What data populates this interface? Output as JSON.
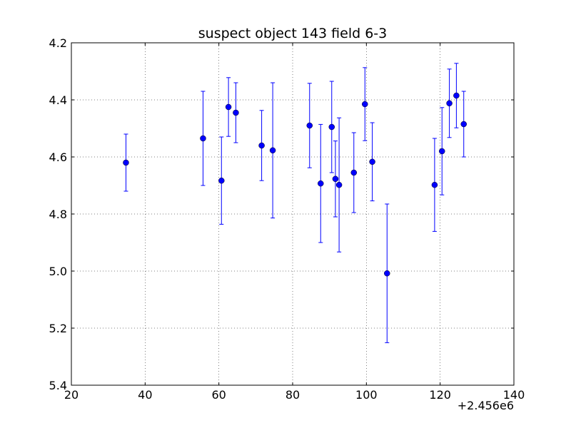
{
  "chart_data": {
    "type": "scatter",
    "title": "suspect object 143 field 6-3",
    "xlabel": "",
    "ylabel": "",
    "x_offset_label": "+2.456e6",
    "xlim": [
      20,
      140
    ],
    "ylim": [
      5.4,
      4.2
    ],
    "y_inverted": true,
    "grid": true,
    "x_ticks": [
      "20",
      "40",
      "60",
      "80",
      "100",
      "120",
      "140"
    ],
    "y_ticks": [
      "4.2",
      "4.4",
      "4.6",
      "4.8",
      "5.0",
      "5.2",
      "5.4"
    ],
    "colors": {
      "series": "#0000ff",
      "grid": "#000000"
    },
    "series": [
      {
        "points": [
          {
            "x": 34.8,
            "y": 4.62,
            "err": 0.1
          },
          {
            "x": 55.7,
            "y": 4.535,
            "err": 0.165
          },
          {
            "x": 60.7,
            "y": 4.683,
            "err": 0.153
          },
          {
            "x": 62.6,
            "y": 4.425,
            "err": 0.103
          },
          {
            "x": 64.6,
            "y": 4.445,
            "err": 0.105
          },
          {
            "x": 71.6,
            "y": 4.56,
            "err": 0.123
          },
          {
            "x": 74.6,
            "y": 4.577,
            "err": 0.237
          },
          {
            "x": 84.6,
            "y": 4.49,
            "err": 0.148
          },
          {
            "x": 87.6,
            "y": 4.693,
            "err": 0.207
          },
          {
            "x": 90.6,
            "y": 4.495,
            "err": 0.16
          },
          {
            "x": 91.6,
            "y": 4.677,
            "err": 0.133
          },
          {
            "x": 92.6,
            "y": 4.698,
            "err": 0.235
          },
          {
            "x": 96.6,
            "y": 4.655,
            "err": 0.14
          },
          {
            "x": 99.6,
            "y": 4.415,
            "err": 0.128
          },
          {
            "x": 101.6,
            "y": 4.617,
            "err": 0.137
          },
          {
            "x": 105.6,
            "y": 5.008,
            "err": 0.243
          },
          {
            "x": 118.5,
            "y": 4.698,
            "err": 0.163
          },
          {
            "x": 120.5,
            "y": 4.58,
            "err": 0.153
          },
          {
            "x": 122.5,
            "y": 4.412,
            "err": 0.12
          },
          {
            "x": 124.4,
            "y": 4.385,
            "err": 0.113
          },
          {
            "x": 126.4,
            "y": 4.485,
            "err": 0.115
          }
        ]
      }
    ]
  }
}
